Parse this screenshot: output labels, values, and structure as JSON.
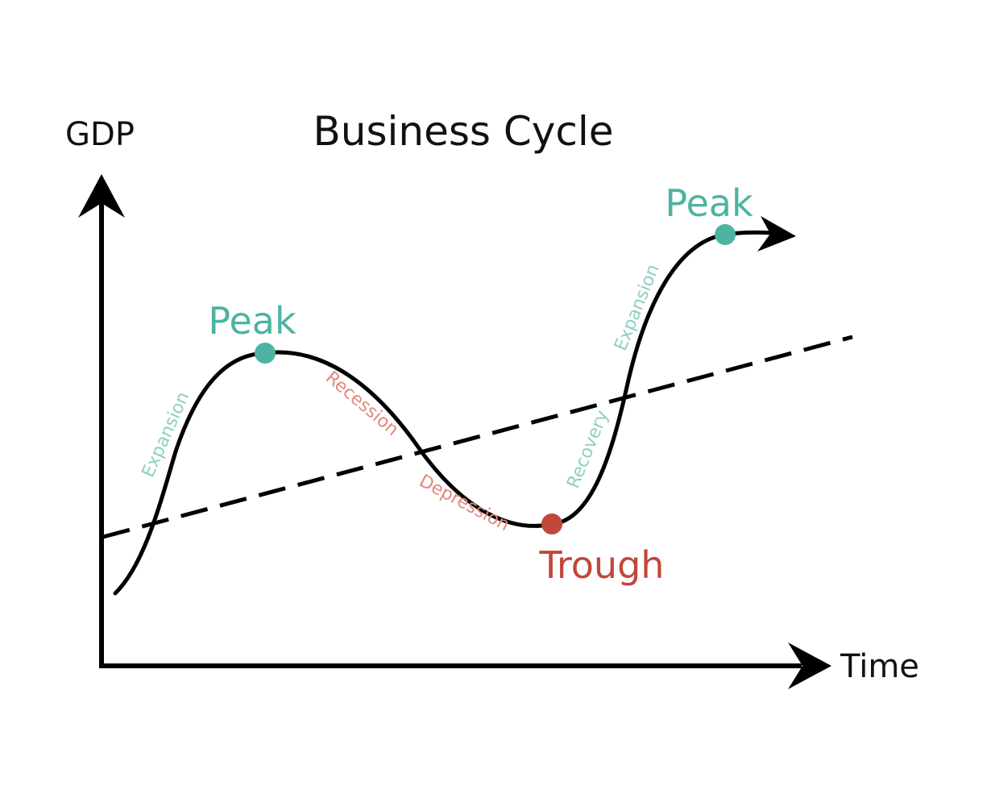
{
  "title": "Business Cycle",
  "y_axis_label": "GDP",
  "x_axis_label": "Time",
  "colors": {
    "curve": "#000000",
    "trend": "#000000",
    "peak": "#4DB3A2",
    "trough": "#C0473A",
    "phase_growth": "#8FCFC3",
    "phase_decline": "#E2887D"
  },
  "points": {
    "peak_1": "Peak",
    "trough": "Trough",
    "peak_2": "Peak"
  },
  "phases": {
    "expansion_1": "Expansion",
    "recession": "Recession",
    "depression": "Depression",
    "recovery": "Recovery",
    "expansion_2": "Expansion"
  }
}
